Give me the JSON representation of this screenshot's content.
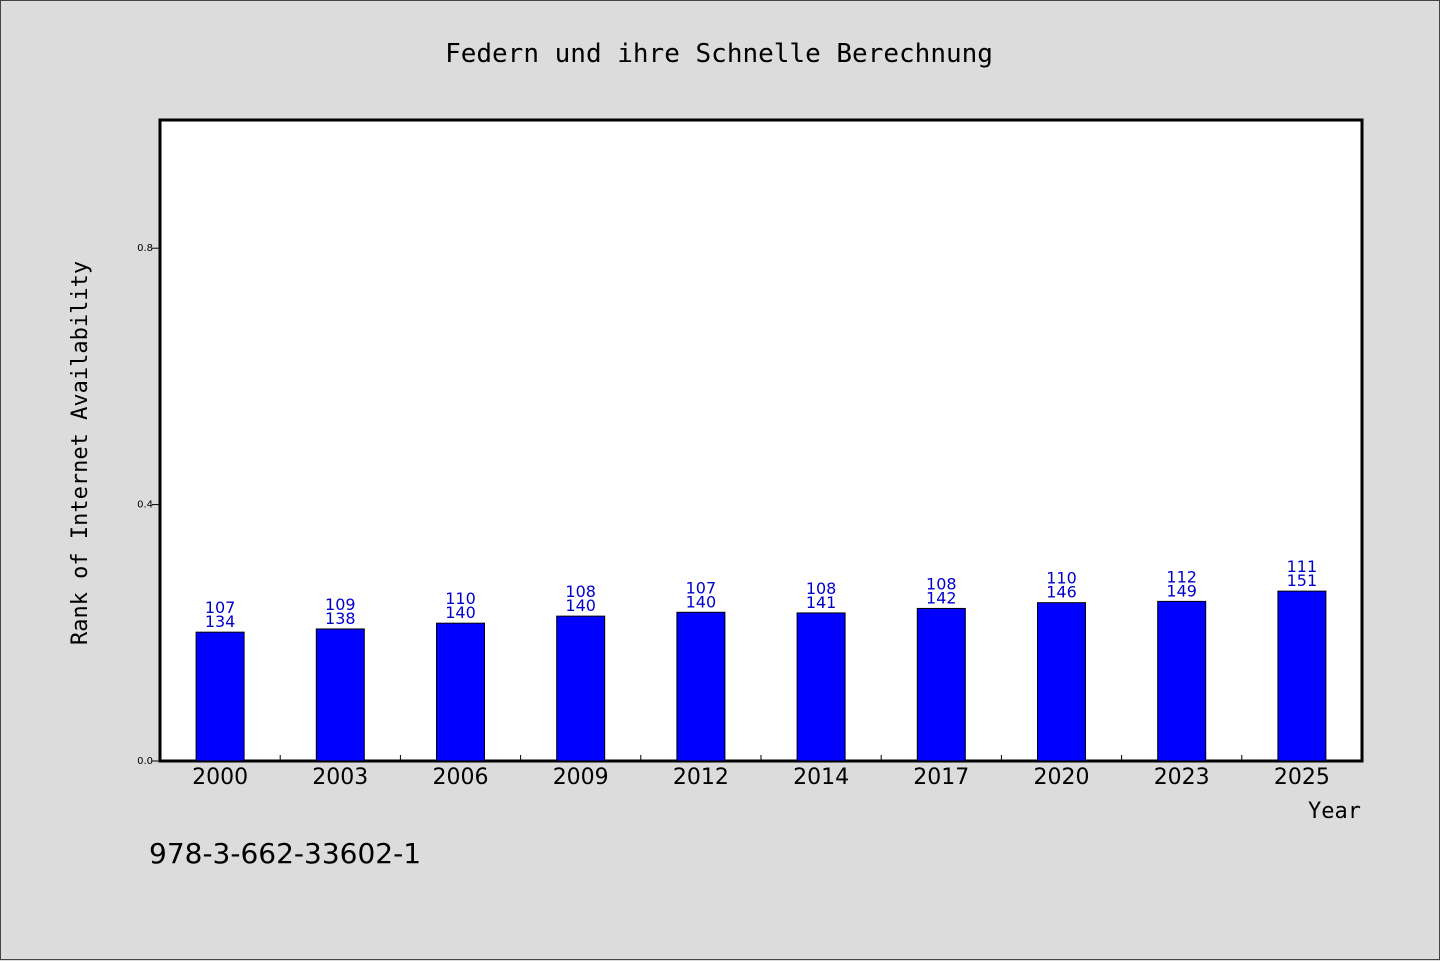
{
  "chart_data": {
    "type": "bar",
    "title": "Federn und ihre Schnelle Berechnung",
    "xlabel": "Year",
    "ylabel": "Rank of Internet Availability",
    "footer_text": "978-3-662-33602-1",
    "categories": [
      "2000",
      "2003",
      "2006",
      "2009",
      "2012",
      "2014",
      "2017",
      "2020",
      "2023",
      "2025"
    ],
    "values": [
      0.201,
      0.206,
      0.215,
      0.226,
      0.232,
      0.231,
      0.238,
      0.247,
      0.249,
      0.265
    ],
    "bar_labels_top": [
      "107",
      "109",
      "110",
      "108",
      "107",
      "108",
      "108",
      "110",
      "112",
      "111"
    ],
    "bar_labels_bottom": [
      "134",
      "138",
      "140",
      "140",
      "140",
      "141",
      "142",
      "146",
      "149",
      "151"
    ],
    "yticks": [
      "0.0",
      "0.4",
      "0.8"
    ],
    "ylim": [
      0,
      1.0
    ],
    "grid": false,
    "colors": {
      "bar": "#0000ff",
      "label": "#0000cc",
      "background": "#dcdcdc",
      "plot_bg": "#ffffff"
    }
  }
}
